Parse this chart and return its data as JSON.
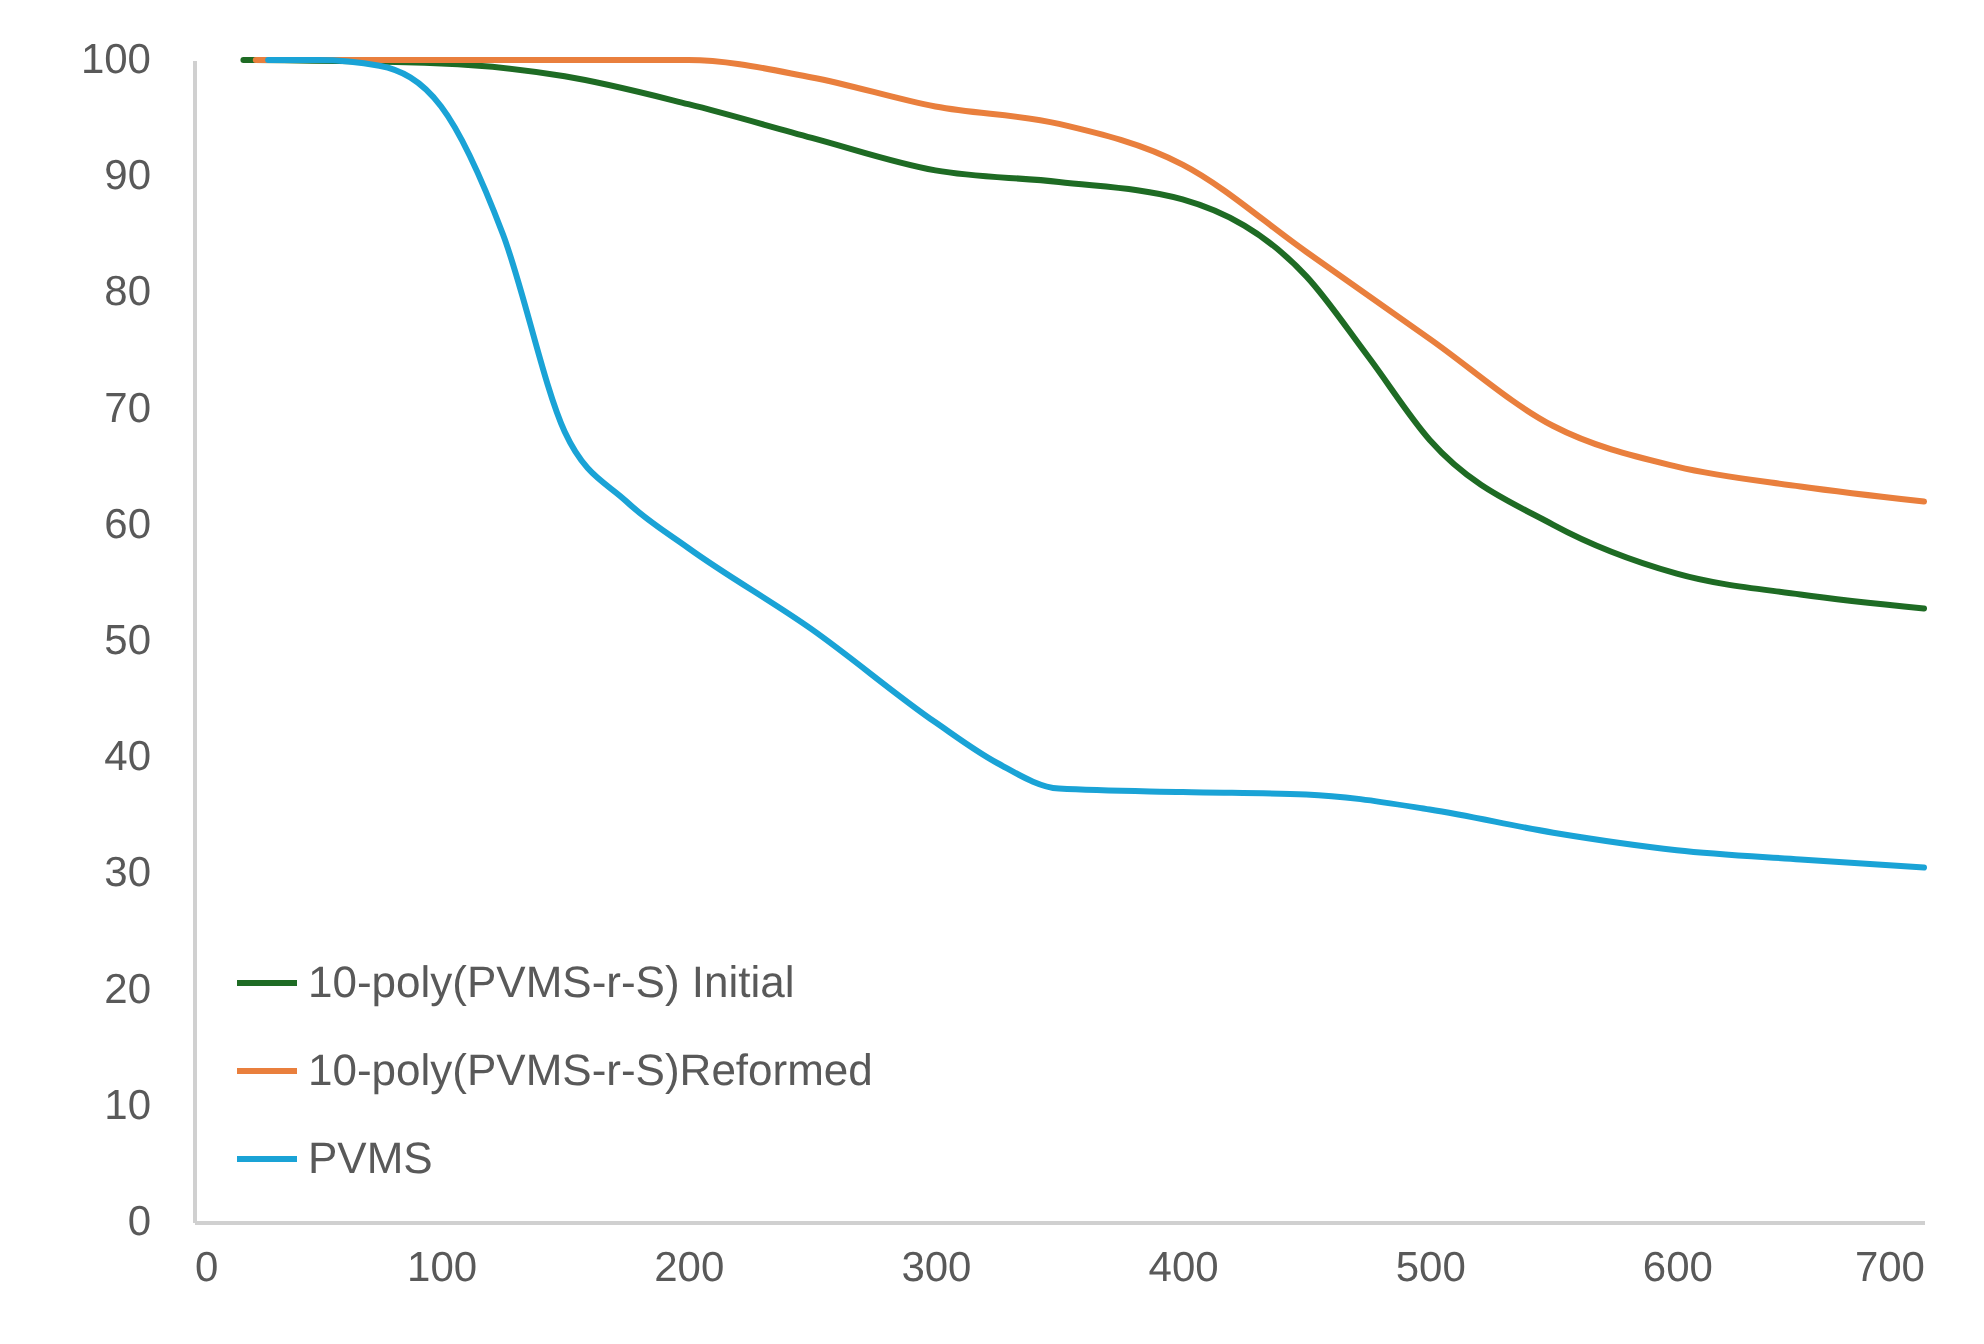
{
  "chart_data": {
    "type": "line",
    "xlim": [
      0,
      700
    ],
    "xticks": [
      0,
      100,
      200,
      300,
      400,
      500,
      600,
      700
    ],
    "ylim": [
      0,
      100
    ],
    "yticks": [
      0,
      10,
      20,
      30,
      40,
      50,
      60,
      70,
      80,
      90,
      100
    ],
    "grid": false,
    "legend": "bottom left",
    "marker": "none",
    "line_style": "solid",
    "series": [
      {
        "name": "10-poly(PVMS-r-S) Initial",
        "color": "#1e6b24",
        "x": [
          20,
          100,
          150,
          200,
          250,
          300,
          350,
          400,
          450,
          475,
          500,
          550,
          600,
          650,
          700
        ],
        "values": [
          100,
          99.7,
          98.6,
          96.2,
          93.3,
          90.5,
          89.5,
          88,
          81.4,
          74.5,
          67.3,
          60,
          55.8,
          54,
          52.8
        ]
      },
      {
        "name": "10-poly(PVMS-r-S)Reformed",
        "color": "#e97f3d",
        "x": [
          25,
          100,
          150,
          200,
          250,
          300,
          350,
          400,
          450,
          500,
          550,
          600,
          650,
          700
        ],
        "values": [
          100,
          100,
          100,
          100,
          98.5,
          96,
          94.5,
          91,
          83.5,
          76,
          68.5,
          65,
          63.3,
          62
        ]
      },
      {
        "name": "PVMS",
        "color": "#1aa3d6",
        "x": [
          30,
          50,
          75,
          100,
          125,
          150,
          175,
          200,
          250,
          300,
          325,
          350,
          400,
          450,
          500,
          550,
          600,
          650,
          700
        ],
        "values": [
          100,
          100,
          99.5,
          96,
          85,
          68,
          62,
          58,
          51,
          43,
          39.5,
          37.3,
          37,
          36.8,
          35.5,
          33.5,
          32,
          31.2,
          30.5
        ]
      }
    ]
  }
}
